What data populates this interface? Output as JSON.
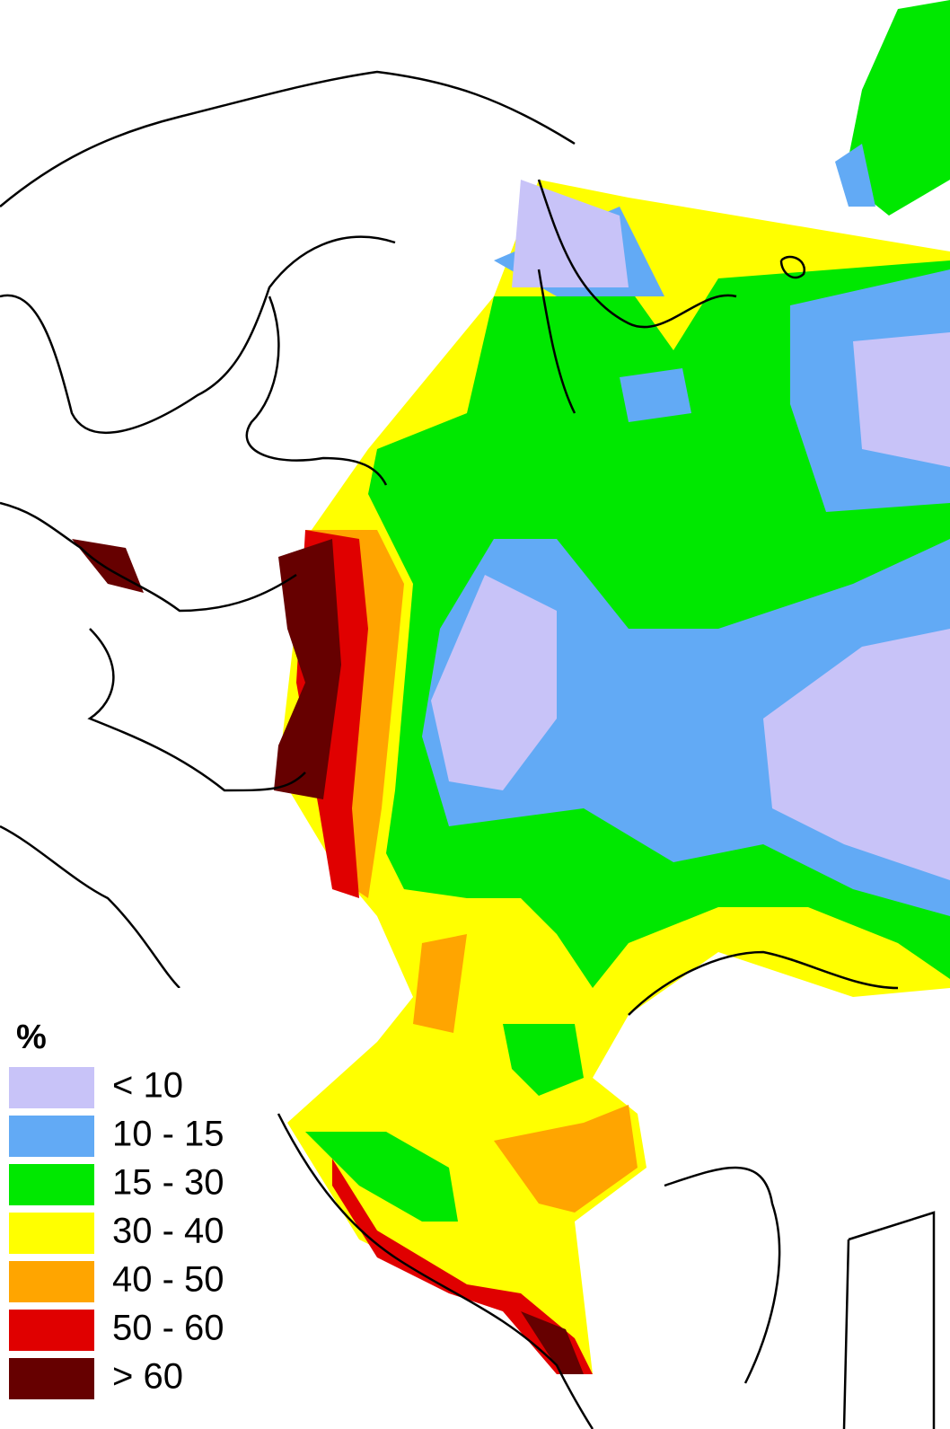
{
  "legend": {
    "title": "%",
    "items": [
      {
        "label": "< 10",
        "color": "#c8c3f8"
      },
      {
        "label": "10 - 15",
        "color": "#62aaf5"
      },
      {
        "label": "15 - 30",
        "color": "#00e800"
      },
      {
        "label": "30 - 40",
        "color": "#ffff00"
      },
      {
        "label": "40 - 50",
        "color": "#ffa500"
      },
      {
        "label": "50 - 60",
        "color": "#e00000"
      },
      {
        "label": "> 60",
        "color": "#660000"
      }
    ]
  }
}
